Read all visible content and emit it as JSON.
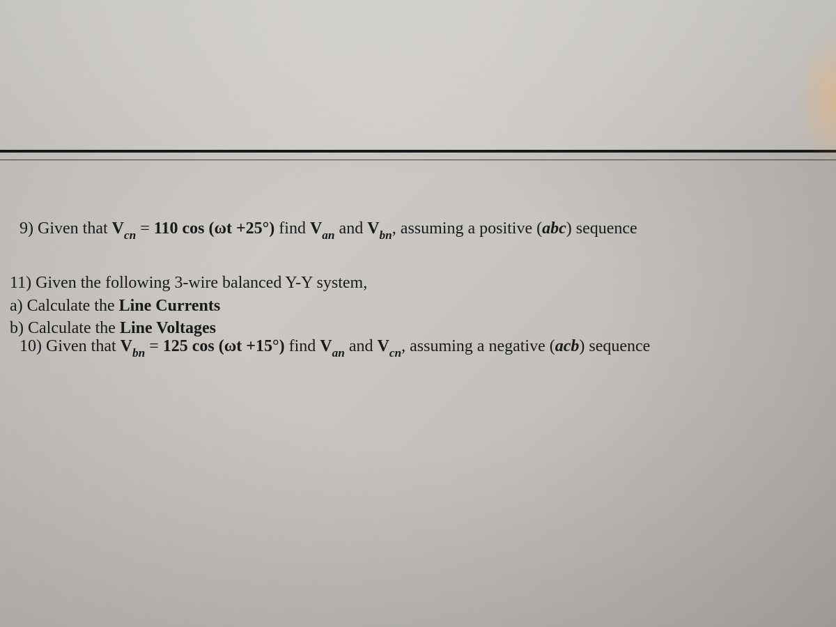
{
  "colors": {
    "background_gradient_start": "#d8d4d0",
    "background_gradient_end": "#b8b4b0",
    "text": "#1a1a1a",
    "divider": "#1a1a1a"
  },
  "typography": {
    "font_family": "Times New Roman",
    "body_fontsize": 24,
    "sub_scale": 0.72
  },
  "problems": {
    "p9": {
      "number": "9)",
      "pre": "Given that ",
      "var1_base": "V",
      "var1_sub": "cn",
      "equals": " = ",
      "expr": "110 cos (ωt +25°)",
      "mid": " find ",
      "var2_base": "V",
      "var2_sub": "an",
      "and": " and ",
      "var3_base": "V",
      "var3_sub": "bn",
      "tail_pre": ", assuming a positive (",
      "seq": "abc",
      "tail_post": ") sequence"
    },
    "p10": {
      "number": "10)",
      "pre": "Given that ",
      "var1_base": "V",
      "var1_sub": "bn",
      "equals": " = ",
      "expr": "125 cos (ωt +15°)",
      "mid": " find ",
      "var2_base": "V",
      "var2_sub": "an",
      "and": " and ",
      "var3_base": "V",
      "var3_sub": "cn",
      "tail_pre": ", assuming a negative (",
      "seq": "acb",
      "tail_post": ") sequence"
    },
    "p11": {
      "number": "11)",
      "text": "Given the following 3-wire balanced Y-Y system,",
      "a_label": "a)",
      "a_pre": "Calculate the ",
      "a_bold": "Line Currents",
      "b_label": "b)",
      "b_pre": "Calculate the ",
      "b_bold": "Line Voltages"
    }
  }
}
